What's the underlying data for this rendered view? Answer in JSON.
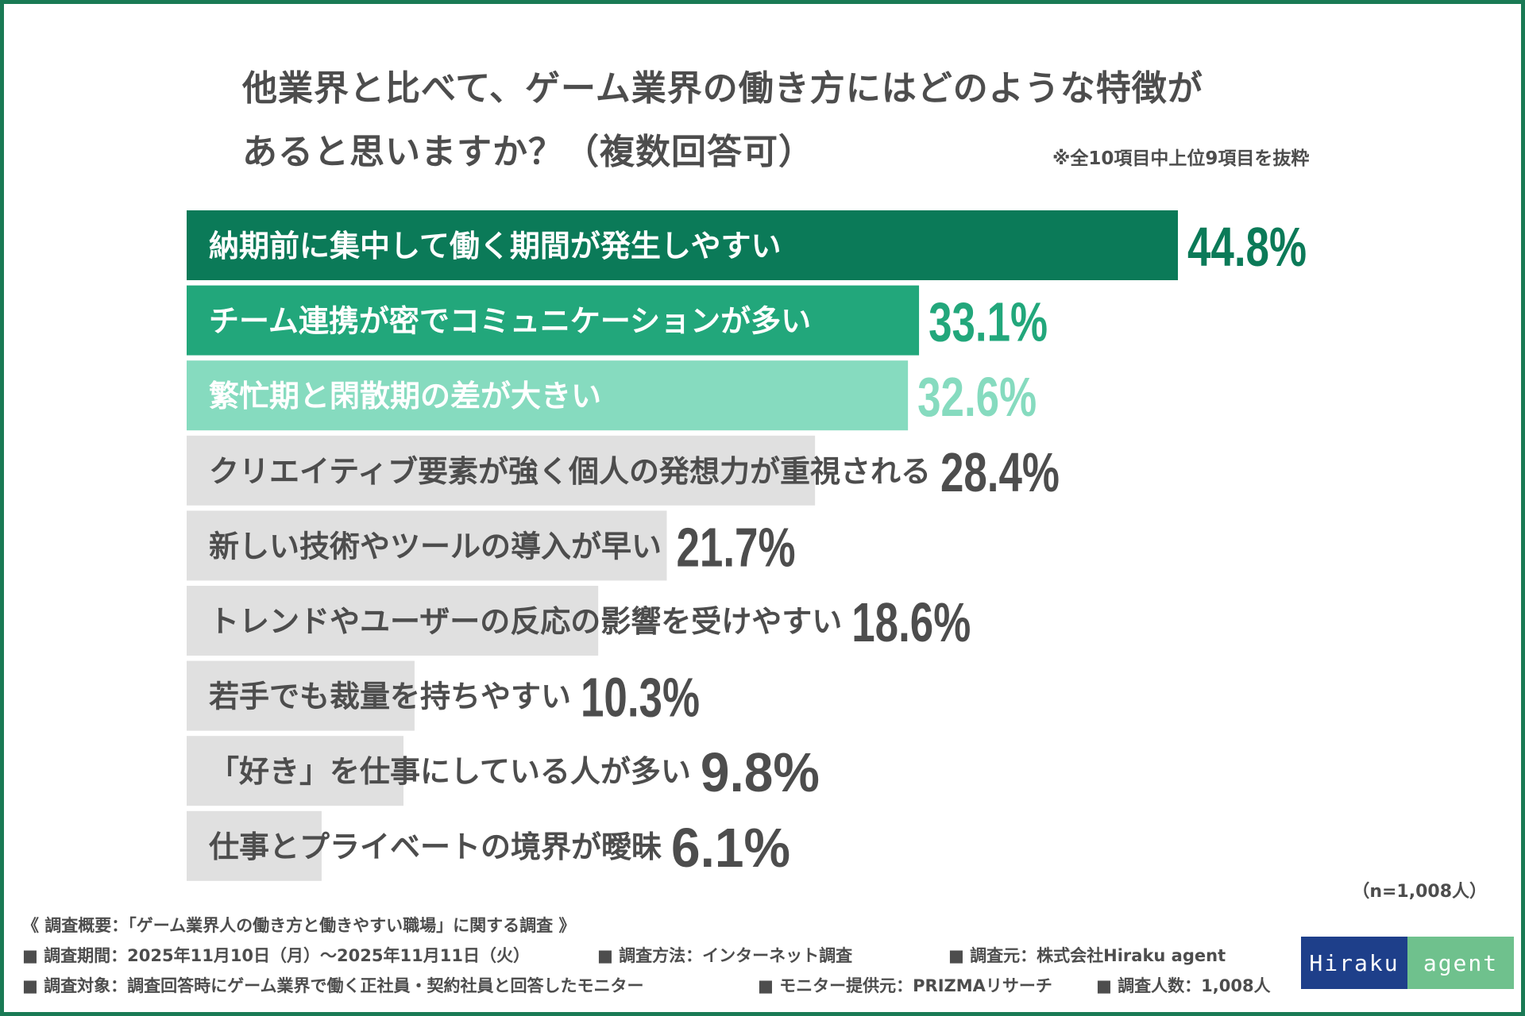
{
  "title": {
    "line1": "他業界と比べて、ゲーム業界の働き方にはどのような特徴が",
    "line2": "あると思いますか？（複数回答可）"
  },
  "note": "※全10項目中上位9項目を抜粋",
  "chart_data": {
    "type": "bar",
    "orientation": "horizontal",
    "title": "他業界と比べて、ゲーム業界の働き方にはどのような特徴があると思いますか？（複数回答可）",
    "unit": "%",
    "xlim": [
      0,
      44.8
    ],
    "categories": [
      "納期前に集中して働く期間が発生しやすい",
      "チーム連携が密でコミュニケーションが多い",
      "繁忙期と閑散期の差が大きい",
      "クリエイティブ要素が強く個人の発想力が重視される",
      "新しい技術やツールの導入が早い",
      "トレンドやユーザーの反応の影響を受けやすい",
      "若手でも裁量を持ちやすい",
      "「好き」を仕事にしている人が多い",
      "仕事とプライベートの境界が曖昧"
    ],
    "values": [
      44.8,
      33.1,
      32.6,
      28.4,
      21.7,
      18.6,
      10.3,
      9.8,
      6.1
    ],
    "value_labels": [
      "44.8%",
      "33.1%",
      "32.6%",
      "28.4%",
      "21.7%",
      "18.6%",
      "10.3%",
      "9.8%",
      "6.1%"
    ],
    "bar_colors": [
      "#0b7a58",
      "#22a77b",
      "#86dbbf",
      "#e0e0e0",
      "#e0e0e0",
      "#e0e0e0",
      "#e0e0e0",
      "#e0e0e0",
      "#e0e0e0"
    ],
    "label_colors": [
      "#ffffff",
      "#ffffff",
      "#ffffff",
      "#4d4d4d",
      "#4d4d4d",
      "#4d4d4d",
      "#4d4d4d",
      "#4d4d4d",
      "#4d4d4d"
    ],
    "value_colors": [
      "#0b7a58",
      "#22a77b",
      "#86dbbf",
      "#4d4d4d",
      "#4d4d4d",
      "#4d4d4d",
      "#4d4d4d",
      "#4d4d4d",
      "#4d4d4d"
    ]
  },
  "sample_size": "（n=1,008人）",
  "footer": {
    "heading": "《 調査概要：「ゲーム業界人の働き方と働きやすい職場」に関する調査 》",
    "period": "■ 調査期間：2025年11月10日（月）～2025年11月11日（火）",
    "method": "■ 調査方法：インターネット調査",
    "source": "■ 調査元：株式会社Hiraku agent",
    "target": "■ 調査対象：調査回答時にゲーム業界で働く正社員・契約社員と回答したモニター",
    "provider": "■ モニター提供元：PRIZMAリサーチ",
    "count": "■ 調査人数：1,008人"
  },
  "logo": {
    "left": "Hiraku",
    "right": "agent"
  },
  "colors": {
    "frame": "#1a7a55",
    "text": "#4d4d4d"
  }
}
